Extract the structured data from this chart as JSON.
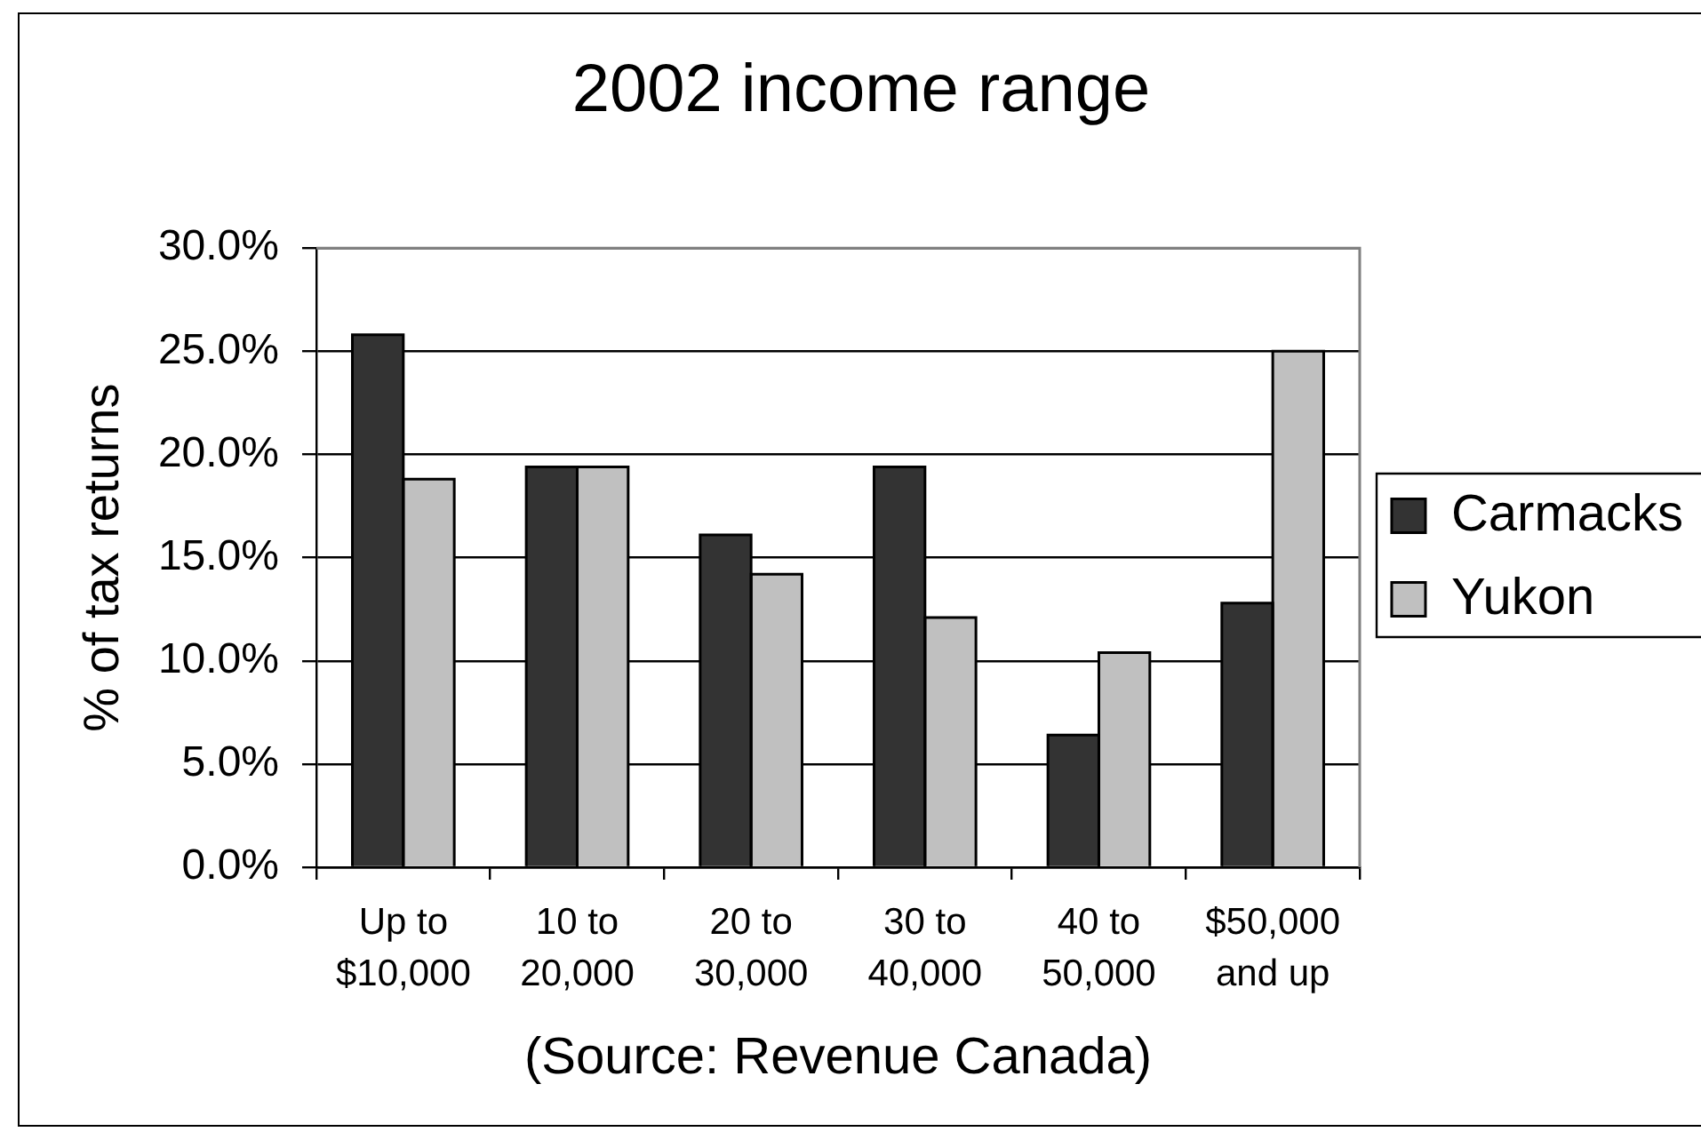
{
  "chart_data": {
    "type": "bar",
    "title": "2002 income range",
    "ylabel": "% of tax returns",
    "annotations": [
      "(Source: Revenue Canada)"
    ],
    "categories": [
      "Up to $10,000",
      "10 to 20,000",
      "20 to 30,000",
      "30 to 40,000",
      "40 to 50,000",
      "$50,000 and up"
    ],
    "series": [
      {
        "name": "Carmacks",
        "color": "#333333",
        "values": [
          25.8,
          19.4,
          16.1,
          19.4,
          6.4,
          12.8
        ]
      },
      {
        "name": "Yukon",
        "color": "#c0c0c0",
        "values": [
          18.8,
          19.4,
          14.2,
          12.1,
          10.4,
          25.0
        ]
      }
    ],
    "ylim": [
      0,
      30
    ],
    "yticks": [
      {
        "value": 0,
        "label": "0.0%"
      },
      {
        "value": 5,
        "label": "5.0%"
      },
      {
        "value": 10,
        "label": "10.0%"
      },
      {
        "value": 15,
        "label": "15.0%"
      },
      {
        "value": 20,
        "label": "20.0%"
      },
      {
        "value": 25,
        "label": "25.0%"
      },
      {
        "value": 30,
        "label": "30.0%"
      }
    ],
    "grid": "y",
    "legend": "right"
  }
}
